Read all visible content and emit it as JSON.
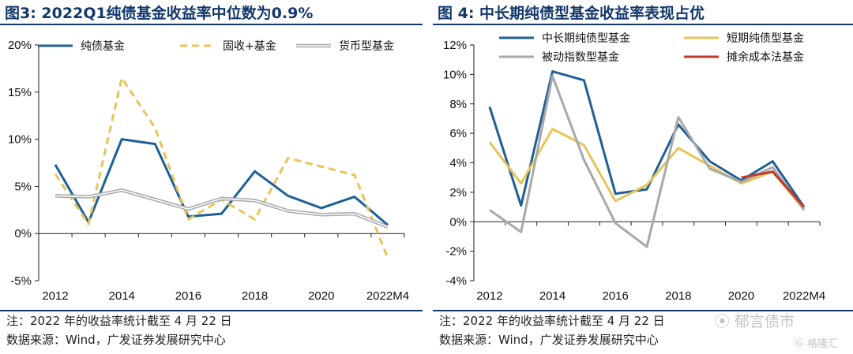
{
  "panels": [
    {
      "title": "图3:  2022Q1纯债基金收益率中位数为0.9%",
      "note": "注：2022 年的收益率统计截至 4 月 22 日",
      "source": "数据来源：Wind，广发证券发展研究中心"
    },
    {
      "title": "图 4:  中长期纯债型基金收益率表现占优",
      "note": "注：2022 年的收益率统计截至 4 月 22 日",
      "source": "数据来源：Wind，广发证券发展研究中心"
    }
  ],
  "watermark": {
    "line1": "⦿ 郁言债市",
    "line2": "Ⓖ 格隆汇"
  },
  "colors": {
    "blue": "#1f5f96",
    "yellow": "#e8c35a",
    "gray": "#a8a8a8",
    "red": "#c0392b",
    "navy": "#12376b"
  },
  "chart_data": [
    {
      "type": "line",
      "title": "2022Q1纯债基金收益率中位数为0.9%",
      "x": [
        "2012",
        "2013",
        "2014",
        "2015",
        "2016",
        "2017",
        "2018",
        "2019",
        "2020",
        "2021",
        "2022M4"
      ],
      "x_tick_labels": [
        "2012",
        "2014",
        "2016",
        "2018",
        "2020",
        "2022M4"
      ],
      "ylim": [
        -5,
        20
      ],
      "y_ticks": [
        -5,
        0,
        5,
        10,
        15,
        20
      ],
      "y_format": "percent",
      "legend_position": "top",
      "series": [
        {
          "name": "纯债基金",
          "color": "#1f5f96",
          "dash": false,
          "values": [
            7.3,
            1.2,
            10.0,
            9.5,
            1.8,
            2.1,
            6.6,
            4.0,
            2.7,
            3.9,
            0.9
          ]
        },
        {
          "name": "固收+基金",
          "color": "#e8c35a",
          "dash": true,
          "values": [
            6.3,
            1.0,
            16.5,
            11.2,
            1.5,
            3.6,
            1.5,
            8.0,
            7.1,
            6.2,
            -2.6
          ]
        },
        {
          "name": "货币型基金",
          "color": "#a8a8a8",
          "dash": false,
          "double": true,
          "values": [
            4.0,
            3.9,
            4.6,
            3.6,
            2.6,
            3.7,
            3.5,
            2.4,
            2.0,
            2.1,
            0.7
          ]
        }
      ]
    },
    {
      "type": "line",
      "title": "中长期纯债型基金收益率表现占优",
      "x": [
        "2012",
        "2013",
        "2014",
        "2015",
        "2016",
        "2017",
        "2018",
        "2019",
        "2020",
        "2021",
        "2022M4"
      ],
      "x_tick_labels": [
        "2012",
        "2014",
        "2016",
        "2018",
        "2020",
        "2022M4"
      ],
      "ylim": [
        -4,
        12
      ],
      "y_ticks": [
        -4,
        -2,
        0,
        2,
        4,
        6,
        8,
        10,
        12
      ],
      "y_format": "percent",
      "legend_position": "top",
      "series": [
        {
          "name": "中长期纯债型基金",
          "color": "#1f5f96",
          "values": [
            7.8,
            1.1,
            10.2,
            9.6,
            1.9,
            2.2,
            6.6,
            4.1,
            2.8,
            4.1,
            1.0
          ]
        },
        {
          "name": "短期纯债型基金",
          "color": "#e8c35a",
          "values": [
            5.4,
            2.6,
            6.3,
            5.2,
            1.4,
            2.5,
            5.0,
            3.8,
            2.6,
            3.4,
            0.8
          ]
        },
        {
          "name": "被动指数型基金",
          "color": "#a8a8a8",
          "values": [
            0.8,
            -0.7,
            9.9,
            4.2,
            -0.1,
            -1.7,
            7.1,
            3.6,
            2.7,
            3.7,
            0.8
          ]
        },
        {
          "name": "摊余成本法基金",
          "color": "#c0392b",
          "values": [
            null,
            null,
            null,
            null,
            null,
            null,
            null,
            null,
            3.0,
            3.4,
            1.0
          ]
        }
      ]
    }
  ]
}
